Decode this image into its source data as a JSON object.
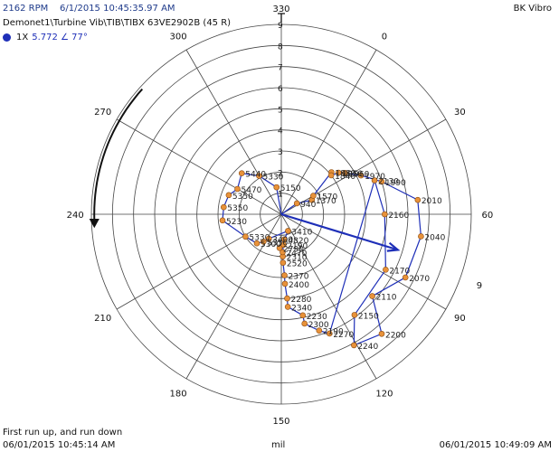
{
  "header": {
    "rpm": "2162 RPM",
    "timestamp": "6/1/2015 10:45:35.97 AM",
    "brand": "BK Vibro",
    "path": "Demonet1\\Turbine Vib\\TIB\\TIBX 63VE2902B  (45 R)",
    "legend_label": "1X",
    "legend_value": "5.772 ∠ 77°"
  },
  "footer": {
    "note": "First run up, and run down",
    "start_time": "06/01/2015 10:45:14 AM",
    "unit": "mil",
    "end_time": "06/01/2015 10:49:09 AM"
  },
  "colors": {
    "trace": "#1e2fb8",
    "marker_fill": "#e8923a",
    "marker_stroke": "#8a4a10",
    "grid": "#444444"
  },
  "chart_data": {
    "type": "polar",
    "r_max": 9,
    "ring_labels": [
      "1",
      "2",
      "3",
      "4",
      "5",
      "6",
      "7",
      "8",
      "9"
    ],
    "angle_labels": [
      {
        "deg": 0,
        "label": "0"
      },
      {
        "deg": 30,
        "label": "30"
      },
      {
        "deg": 60,
        "label": "60"
      },
      {
        "deg": 90,
        "label": "90"
      },
      {
        "deg": 120,
        "label": "120"
      },
      {
        "deg": 150,
        "label": "150"
      },
      {
        "deg": 180,
        "label": "180"
      },
      {
        "deg": 210,
        "label": "210"
      },
      {
        "deg": 240,
        "label": "240"
      },
      {
        "deg": 270,
        "label": "270"
      },
      {
        "deg": 300,
        "label": "300"
      },
      {
        "deg": 330,
        "label": "330"
      }
    ],
    "outer_label": "9",
    "current_vector": {
      "amplitude": 5.772,
      "phase": 77
    },
    "points": [
      {
        "label": "940",
        "amp": 0.9,
        "phase": 25
      },
      {
        "label": "1370",
        "amp": 1.6,
        "phase": 35
      },
      {
        "label": "1570",
        "amp": 1.75,
        "phase": 30
      },
      {
        "label": "1880",
        "amp": 3.1,
        "phase": 20
      },
      {
        "label": "1840",
        "amp": 3.0,
        "phase": 22
      },
      {
        "label": "1950",
        "amp": 3.35,
        "phase": 24
      },
      {
        "label": "1960",
        "amp": 3.6,
        "phase": 27
      },
      {
        "label": "1970",
        "amp": 4.2,
        "phase": 34
      },
      {
        "label": "1990",
        "amp": 5.0,
        "phase": 42
      },
      {
        "label": "2010",
        "amp": 6.5,
        "phase": 54
      },
      {
        "label": "2040",
        "amp": 6.7,
        "phase": 69
      },
      {
        "label": "2070",
        "amp": 6.6,
        "phase": 87
      },
      {
        "label": "2110",
        "amp": 5.8,
        "phase": 102
      },
      {
        "label": "2200",
        "amp": 7.4,
        "phase": 110
      },
      {
        "label": "2240",
        "amp": 7.1,
        "phase": 121
      },
      {
        "label": "2150",
        "amp": 5.9,
        "phase": 114
      },
      {
        "label": "2170",
        "amp": 5.6,
        "phase": 88
      },
      {
        "label": "2160",
        "amp": 4.9,
        "phase": 60
      },
      {
        "label": "2130",
        "amp": 4.7,
        "phase": 40
      },
      {
        "label": "2270",
        "amp": 6.1,
        "phase": 128
      },
      {
        "label": "2190",
        "amp": 5.8,
        "phase": 132
      },
      {
        "label": "2300",
        "amp": 5.3,
        "phase": 138
      },
      {
        "label": "2230",
        "amp": 4.9,
        "phase": 138
      },
      {
        "label": "2340",
        "amp": 4.4,
        "phase": 146
      },
      {
        "label": "2280",
        "amp": 4.0,
        "phase": 146
      },
      {
        "label": "2400",
        "amp": 3.3,
        "phase": 147
      },
      {
        "label": "2370",
        "amp": 2.9,
        "phase": 147
      },
      {
        "label": "2520",
        "amp": 2.3,
        "phase": 148
      },
      {
        "label": "2310",
        "amp": 2.0,
        "phase": 148
      },
      {
        "label": "2470",
        "amp": 1.8,
        "phase": 148
      },
      {
        "label": "2190",
        "amp": 1.45,
        "phase": 146
      },
      {
        "label": "2790",
        "amp": 1.6,
        "phase": 153
      },
      {
        "label": "4820",
        "amp": 1.2,
        "phase": 143
      },
      {
        "label": "3410",
        "amp": 0.85,
        "phase": 128
      },
      {
        "label": "3400",
        "amp": 1.3,
        "phase": 177
      },
      {
        "label": "5350",
        "amp": 1.55,
        "phase": 183
      },
      {
        "label": "5300",
        "amp": 1.8,
        "phase": 190
      },
      {
        "label": "5330",
        "amp": 2.0,
        "phase": 208
      },
      {
        "label": "5230",
        "amp": 2.8,
        "phase": 234
      },
      {
        "label": "5350",
        "amp": 2.75,
        "phase": 247
      },
      {
        "label": "5350",
        "amp": 2.65,
        "phase": 260
      },
      {
        "label": "5470",
        "amp": 2.4,
        "phase": 270
      },
      {
        "label": "5440",
        "amp": 2.7,
        "phase": 286
      },
      {
        "label": "5330",
        "amp": 2.1,
        "phase": 300
      },
      {
        "label": "5150",
        "amp": 1.3,
        "phase": 320
      }
    ]
  }
}
